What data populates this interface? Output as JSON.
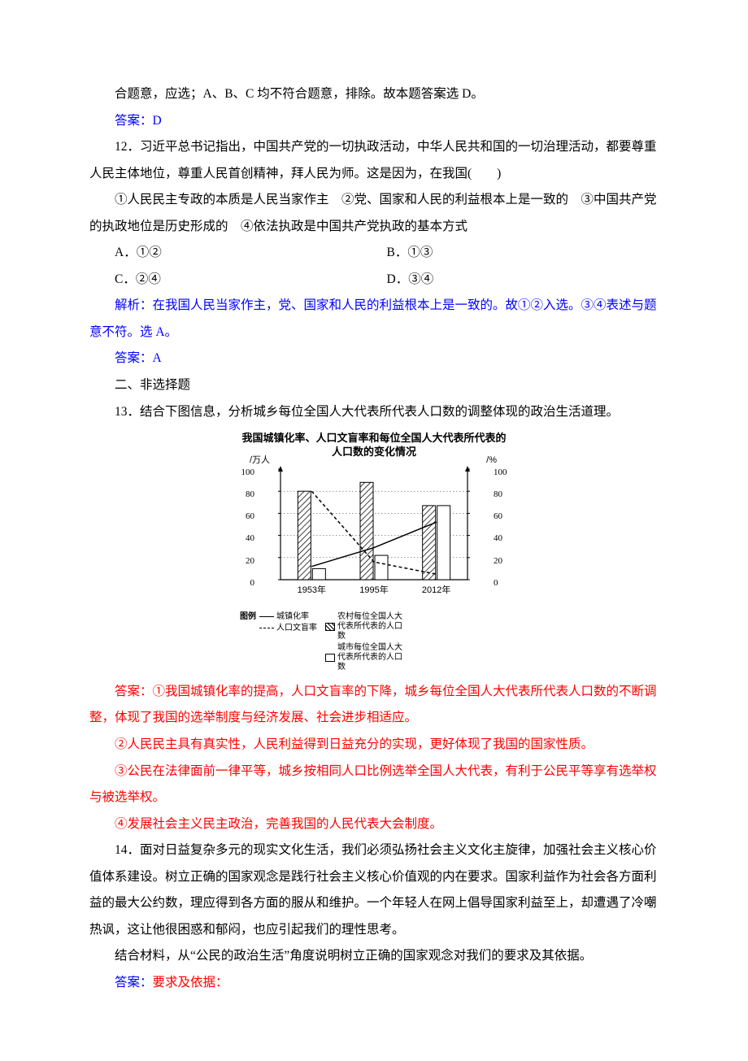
{
  "q11_trail": "合题意，应选；A、B、C 均不符合题意，排除。故本题答案选 D。",
  "q11_answer_label": "答案：",
  "q11_answer": "D",
  "q12": {
    "number": "12．",
    "stem": "习近平总书记指出，中国共产党的一切执政活动，中华人民共和国的一切治理活动，都要尊重人民主体地位，尊重人民首创精神，拜人民为师。这是因为，在我国(　　)",
    "items_line": "①人民民主专政的本质是人民当家作主　②党、国家和人民的利益根本上是一致的　③中国共产党的执政地位是历史形成的　④依法执政是中国共产党执政的基本方式",
    "options": {
      "A": "①②",
      "B": "①③",
      "C": "②④",
      "D": "③④"
    },
    "analysis_label": "解析：",
    "analysis": "在我国人民当家作主，党、国家和人民的利益根本上是一致的。故①②入选。③④表述与题意不符。选 A。",
    "answer_label": "答案：",
    "answer": "A"
  },
  "section2": "二、非选择题",
  "q13": {
    "number": "13．",
    "stem": "结合下图信息，分析城乡每位全国人大代表所代表人口数的调整体现的政治生活道理。",
    "chart": {
      "title": "我国城镇化率、人口文盲率和每位全国人大代表所代表的人口数的变化情况",
      "left_unit": "/万人",
      "right_unit": "/%",
      "ticks": [
        0,
        20,
        40,
        60,
        80,
        100
      ],
      "years": [
        "1953年",
        "1995年",
        "2012年"
      ],
      "bars_rural": [
        80,
        88,
        67
      ],
      "bars_urban": [
        10,
        22,
        67
      ],
      "line_urbanization": [
        12,
        29,
        52
      ],
      "line_illiteracy": [
        80,
        16,
        5
      ],
      "colors": {
        "axis": "#000000",
        "bar_border": "#000000",
        "bg": "#ffffff"
      },
      "legend_label": "图例",
      "legend": {
        "urbanization": "城镇化率",
        "illiteracy": "人口文盲率",
        "rural": "农村每位全国人大代表所代表的人口数",
        "urban": "城市每位全国人大代表所代表的人口数"
      }
    },
    "answer_label": "答案：",
    "answer_paras": [
      "①我国城镇化率的提高，人口文盲率的下降，城乡每位全国人大代表所代表人口数的不断调整，体现了我国的选举制度与经济发展、社会进步相适应。",
      "②人民民主具有真实性，人民利益得到日益充分的实现，更好体现了我国的国家性质。",
      "③公民在法律面前一律平等，城乡按相同人口比例选举全国人大代表，有利于公民平等享有选举权与被选举权。",
      "④发展社会主义民主政治，完善我国的人民代表大会制度。"
    ]
  },
  "q14": {
    "number": "14．",
    "stem_p1": "面对日益复杂多元的现实文化生活，我们必须弘扬社会主义文化主旋律，加强社会主义核心价值体系建设。树立正确的国家观念是践行社会主义核心价值观的内在要求。国家利益作为社会各方面利益的最大公约数，理应得到各方面的服从和维护。一个年轻人在网上倡导国家利益至上，却遭遇了冷嘲热讽，这让他很困惑和郁闷，也应引起我们的理性思考。",
    "stem_p2": "结合材料，从“公民的政治生活”角度说明树立正确的国家观念对我们的要求及其依据。",
    "answer_label": "答案：",
    "answer_trail": "要求及依据："
  }
}
